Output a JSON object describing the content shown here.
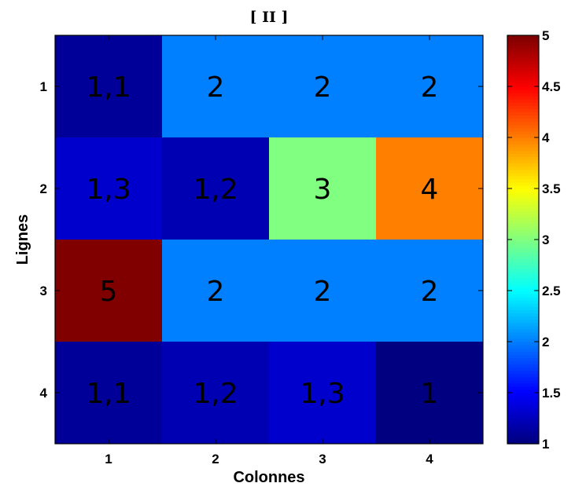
{
  "chart_data": {
    "type": "heatmap",
    "title": "[ II ]",
    "xlabel": "Colonnes",
    "ylabel": "Lignes",
    "x_categories": [
      "1",
      "2",
      "3",
      "4"
    ],
    "y_categories": [
      "1",
      "2",
      "3",
      "4"
    ],
    "values": [
      [
        1.1,
        2,
        2,
        2
      ],
      [
        1.3,
        1.2,
        3,
        4
      ],
      [
        5,
        2,
        2,
        2
      ],
      [
        1.1,
        1.2,
        1.3,
        1
      ]
    ],
    "cell_labels": [
      [
        "1,1",
        "2",
        "2",
        "2"
      ],
      [
        "1,3",
        "1,2",
        "3",
        "4"
      ],
      [
        "5",
        "2",
        "2",
        "2"
      ],
      [
        "1,1",
        "1,2",
        "1,3",
        "1"
      ]
    ],
    "colormap": "jet",
    "clim": [
      1,
      5
    ],
    "colorbar_ticks": [
      "1",
      "1.5",
      "2",
      "2.5",
      "3",
      "3.5",
      "4",
      "4.5",
      "5"
    ],
    "colorbar_tick_values": [
      1,
      1.5,
      2,
      2.5,
      3,
      3.5,
      4,
      4.5,
      5
    ],
    "grid": false
  }
}
